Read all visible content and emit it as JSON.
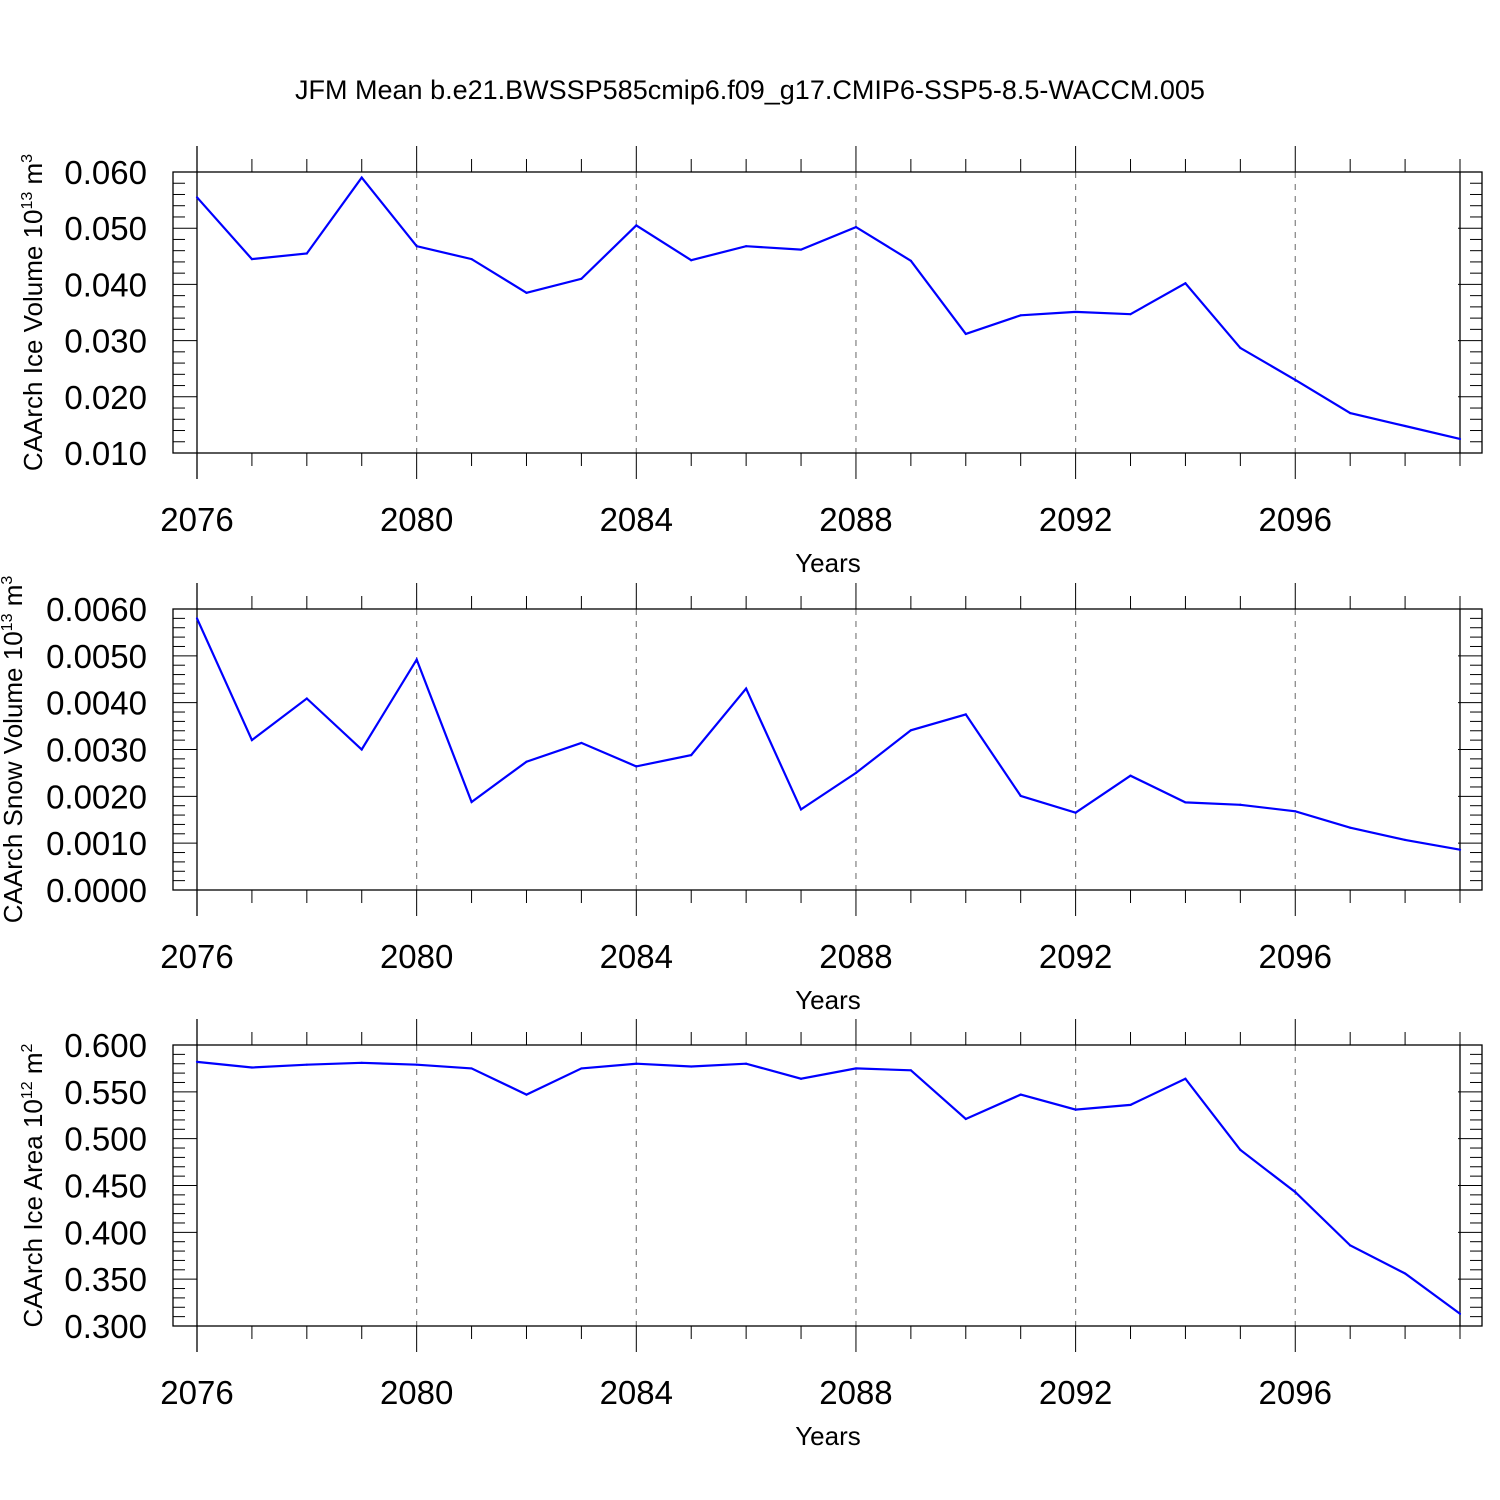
{
  "title": "JFM Mean b.e21.BWSSP585cmip6.f09_g17.CMIP6-SSP5-8.5-WACCM.005",
  "colors": {
    "line": "#0000ff",
    "axis": "#000000",
    "grid": "#808080"
  },
  "chart_data": [
    {
      "type": "line",
      "id": "ice-volume",
      "xlabel": "Years",
      "ylabel": {
        "text": "CAArch Ice Volume 10",
        "exp": "13",
        "unit": " m",
        "unit_exp": "3"
      },
      "xlim": [
        2076,
        2099
      ],
      "ylim": [
        0.01,
        0.06
      ],
      "grid": "vertical dashed at major x ticks",
      "x_ticks": [
        2076,
        2080,
        2084,
        2088,
        2092,
        2096
      ],
      "x_tick_labels": [
        "2076",
        "2080",
        "2084",
        "2088",
        "2092",
        "2096"
      ],
      "y_ticks": [
        0.06,
        0.05,
        0.04,
        0.03,
        0.02,
        0.01
      ],
      "y_tick_labels": [
        "0.060",
        "0.050",
        "0.040",
        "0.030",
        "0.020",
        "0.010"
      ],
      "x": [
        2076,
        2077,
        2078,
        2079,
        2080,
        2081,
        2082,
        2083,
        2084,
        2085,
        2086,
        2087,
        2088,
        2089,
        2090,
        2091,
        2092,
        2093,
        2094,
        2095,
        2096,
        2097,
        2098,
        2099
      ],
      "values": [
        0.0555,
        0.0445,
        0.0455,
        0.059,
        0.0468,
        0.0445,
        0.0385,
        0.041,
        0.0505,
        0.0443,
        0.0468,
        0.0462,
        0.0502,
        0.0442,
        0.0312,
        0.0345,
        0.0351,
        0.0347,
        0.0402,
        0.0287,
        0.023,
        0.0171,
        0.0148,
        0.0125
      ]
    },
    {
      "type": "line",
      "id": "snow-volume",
      "xlabel": "Years",
      "ylabel": {
        "text": "CAArch Snow Volume 10",
        "exp": "13",
        "unit": " m",
        "unit_exp": "3"
      },
      "xlim": [
        2076,
        2099
      ],
      "ylim": [
        0.0,
        0.006
      ],
      "grid": "vertical dashed at major x ticks",
      "x_ticks": [
        2076,
        2080,
        2084,
        2088,
        2092,
        2096
      ],
      "x_tick_labels": [
        "2076",
        "2080",
        "2084",
        "2088",
        "2092",
        "2096"
      ],
      "y_ticks": [
        0.006,
        0.005,
        0.004,
        0.003,
        0.002,
        0.001,
        0.0
      ],
      "y_tick_labels": [
        "0.0060",
        "0.0050",
        "0.0040",
        "0.0030",
        "0.0020",
        "0.0010",
        "0.0000"
      ],
      "x": [
        2076,
        2077,
        2078,
        2079,
        2080,
        2081,
        2082,
        2083,
        2084,
        2085,
        2086,
        2087,
        2088,
        2089,
        2090,
        2091,
        2092,
        2093,
        2094,
        2095,
        2096,
        2097,
        2098,
        2099
      ],
      "values": [
        0.0058,
        0.0032,
        0.00409,
        0.003,
        0.00492,
        0.00188,
        0.00274,
        0.00314,
        0.00264,
        0.00288,
        0.0043,
        0.00172,
        0.0025,
        0.00341,
        0.00375,
        0.00201,
        0.00165,
        0.00244,
        0.00187,
        0.00182,
        0.00168,
        0.00133,
        0.00107,
        0.00086
      ]
    },
    {
      "type": "line",
      "id": "ice-area",
      "xlabel": "Years",
      "ylabel": {
        "text": "CAArch Ice Area 10",
        "exp": "12",
        "unit": " m",
        "unit_exp": "2"
      },
      "xlim": [
        2076,
        2099
      ],
      "ylim": [
        0.3,
        0.6
      ],
      "grid": "vertical dashed at major x ticks",
      "x_ticks": [
        2076,
        2080,
        2084,
        2088,
        2092,
        2096
      ],
      "x_tick_labels": [
        "2076",
        "2080",
        "2084",
        "2088",
        "2092",
        "2096"
      ],
      "y_ticks": [
        0.6,
        0.55,
        0.5,
        0.45,
        0.4,
        0.35,
        0.3
      ],
      "y_tick_labels": [
        "0.600",
        "0.550",
        "0.500",
        "0.450",
        "0.400",
        "0.350",
        "0.300"
      ],
      "x": [
        2076,
        2077,
        2078,
        2079,
        2080,
        2081,
        2082,
        2083,
        2084,
        2085,
        2086,
        2087,
        2088,
        2089,
        2090,
        2091,
        2092,
        2093,
        2094,
        2095,
        2096,
        2097,
        2098,
        2099
      ],
      "values": [
        0.582,
        0.576,
        0.579,
        0.581,
        0.579,
        0.575,
        0.547,
        0.575,
        0.58,
        0.577,
        0.58,
        0.564,
        0.575,
        0.573,
        0.521,
        0.547,
        0.531,
        0.536,
        0.564,
        0.488,
        0.443,
        0.386,
        0.356,
        0.313
      ]
    }
  ]
}
